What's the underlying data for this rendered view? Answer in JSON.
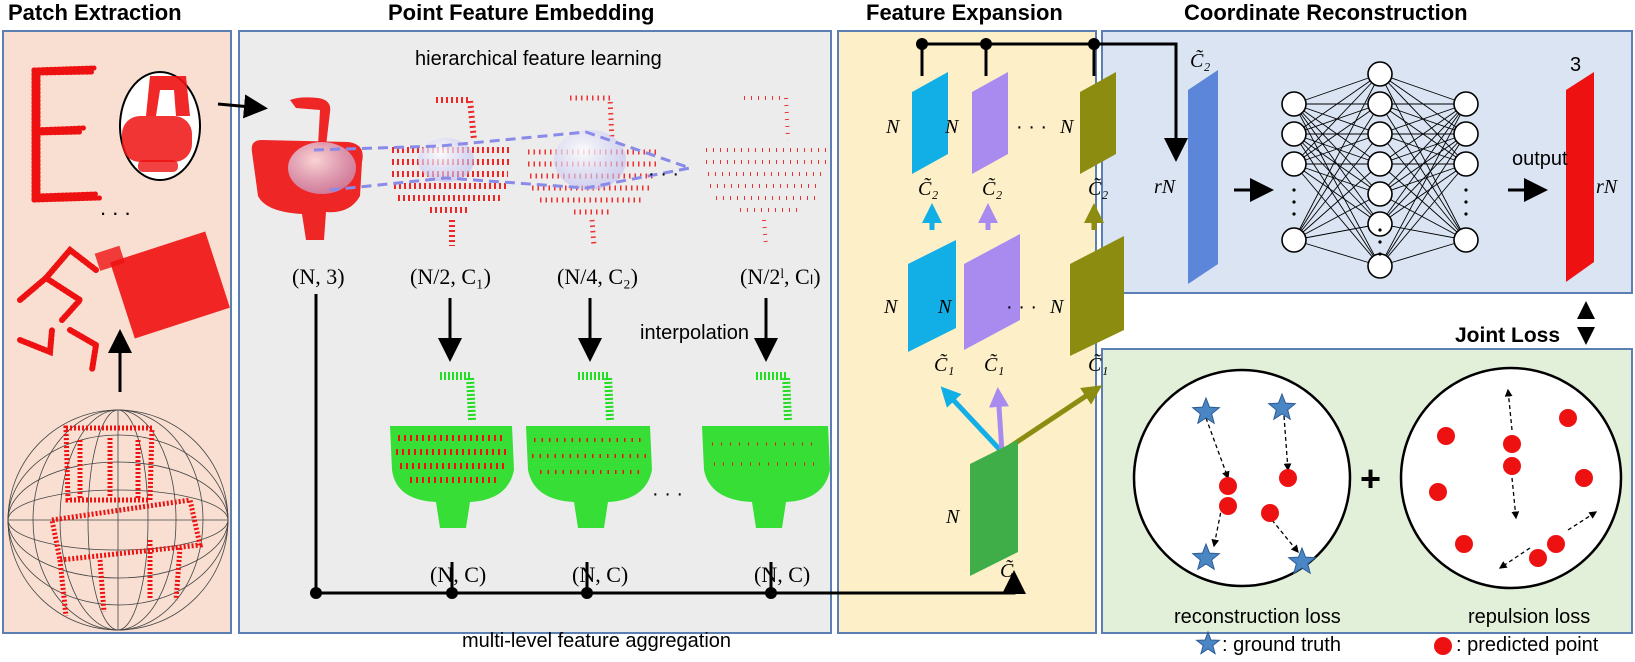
{
  "sections": {
    "patch_extraction": "Patch Extraction",
    "point_feature_embedding": "Point Feature Embedding",
    "feature_expansion": "Feature Expansion",
    "coordinate_reconstruction": "Coordinate Reconstruction"
  },
  "embedding": {
    "top_caption": "hierarchical feature learning",
    "middle_caption": "interpolation",
    "bottom_caption": "multi-level feature aggregation",
    "top_labels": [
      "(N, 3)",
      "(N/2, C₁)",
      "(N/4, C₂)",
      "(N/2ˡ, Cₗ)"
    ],
    "bottom_labels": [
      "(N, C)",
      "(N, C)",
      "(N, C)"
    ],
    "ellipsis": "· · ·"
  },
  "expansion": {
    "n": "N",
    "c2": "C̃₂",
    "c1": "C̃₁",
    "c": "C̃",
    "dots": "· · ·"
  },
  "reconstruction": {
    "in_top": "C̃₂",
    "in_side": "rN",
    "output": "output",
    "out_top": "3",
    "out_side": "rN"
  },
  "joint_loss": "Joint Loss",
  "losses": {
    "reconstruction": "reconstruction loss",
    "repulsion": "repulsion loss",
    "legend_gt": ": ground truth",
    "legend_pred": ": predicted point",
    "plus": "+"
  },
  "patch": {
    "ellipsis": ". . ."
  },
  "colors": {
    "patch_bg": "#f8dfd2",
    "embed_bg": "#ececec",
    "expand_bg": "#fdf0c8",
    "recon_bg": "#dae4f3",
    "loss_bg": "#e2efd9",
    "red_point": "#ee1111",
    "green_point": "#22dd22",
    "cyan": "#12aee6",
    "violet": "#a98aef",
    "olive": "#8c8c10",
    "green_plane": "#3fae48",
    "blue_plane": "#5b86d9",
    "star": "#4b86c4"
  }
}
